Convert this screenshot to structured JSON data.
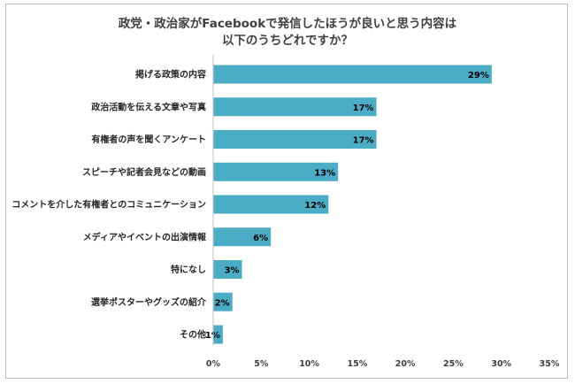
{
  "chart_data": {
    "type": "bar",
    "orientation": "horizontal",
    "title_lines": [
      "政党・政治家がFacebookで発信したほうが良いと思う内容は",
      "以下のうちどれですか？"
    ],
    "categories": [
      "掲げる政策の内容",
      "政治活動を伝える文章や写真",
      "有権者の声を聞くアンケート",
      "スピーチや記者会見などの動画",
      "コメントを介した有権者とのコミュニケーション",
      "メディアやイベントの出演情報",
      "特になし",
      "選挙ポスターやグッズの紹介",
      "その他"
    ],
    "values": [
      29,
      17,
      17,
      13,
      12,
      6,
      3,
      2,
      1
    ],
    "value_labels": [
      "29%",
      "17%",
      "17%",
      "13%",
      "12%",
      "6%",
      "3%",
      "2%",
      "1%"
    ],
    "xlim": [
      0,
      35
    ],
    "xticks": [
      0,
      5,
      10,
      15,
      20,
      25,
      30,
      35
    ],
    "xtick_labels": [
      "0%",
      "5%",
      "10%",
      "15%",
      "20%",
      "25%",
      "30%",
      "35%"
    ],
    "xlabel": "",
    "ylabel": "",
    "grid": false,
    "legend": "none",
    "bar_color": "#4bacc6"
  }
}
